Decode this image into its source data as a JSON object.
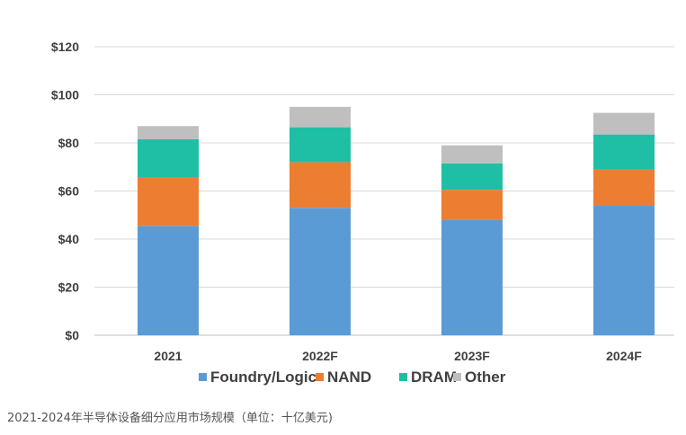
{
  "chart_data": {
    "type": "bar",
    "stacked": true,
    "categories": [
      "2021",
      "2022F",
      "2023F",
      "2024F"
    ],
    "series": [
      {
        "name": "Foundry/Logic",
        "color": "#5b9bd5",
        "values": [
          45.5,
          53,
          48,
          54
        ]
      },
      {
        "name": "NAND",
        "color": "#ed7d31",
        "values": [
          20,
          19,
          12.5,
          15
        ]
      },
      {
        "name": "DRAM",
        "color": "#1fbfa5",
        "values": [
          16,
          14.5,
          11,
          14.5
        ]
      },
      {
        "name": "Other",
        "color": "#bfbfbf",
        "values": [
          5.5,
          8.5,
          7.5,
          9
        ]
      }
    ],
    "ylim": [
      0,
      120
    ],
    "yticks": [
      0,
      20,
      40,
      60,
      80,
      100,
      120
    ],
    "ytick_labels": [
      "$0",
      "$20",
      "$40",
      "$60",
      "$80",
      "$100",
      "$120"
    ],
    "grid": true,
    "legend_position": "bottom",
    "title": "",
    "xlabel": "",
    "ylabel": ""
  },
  "caption": "2021-2024年半导体设备细分应用市场规模（单位：十亿美元)"
}
